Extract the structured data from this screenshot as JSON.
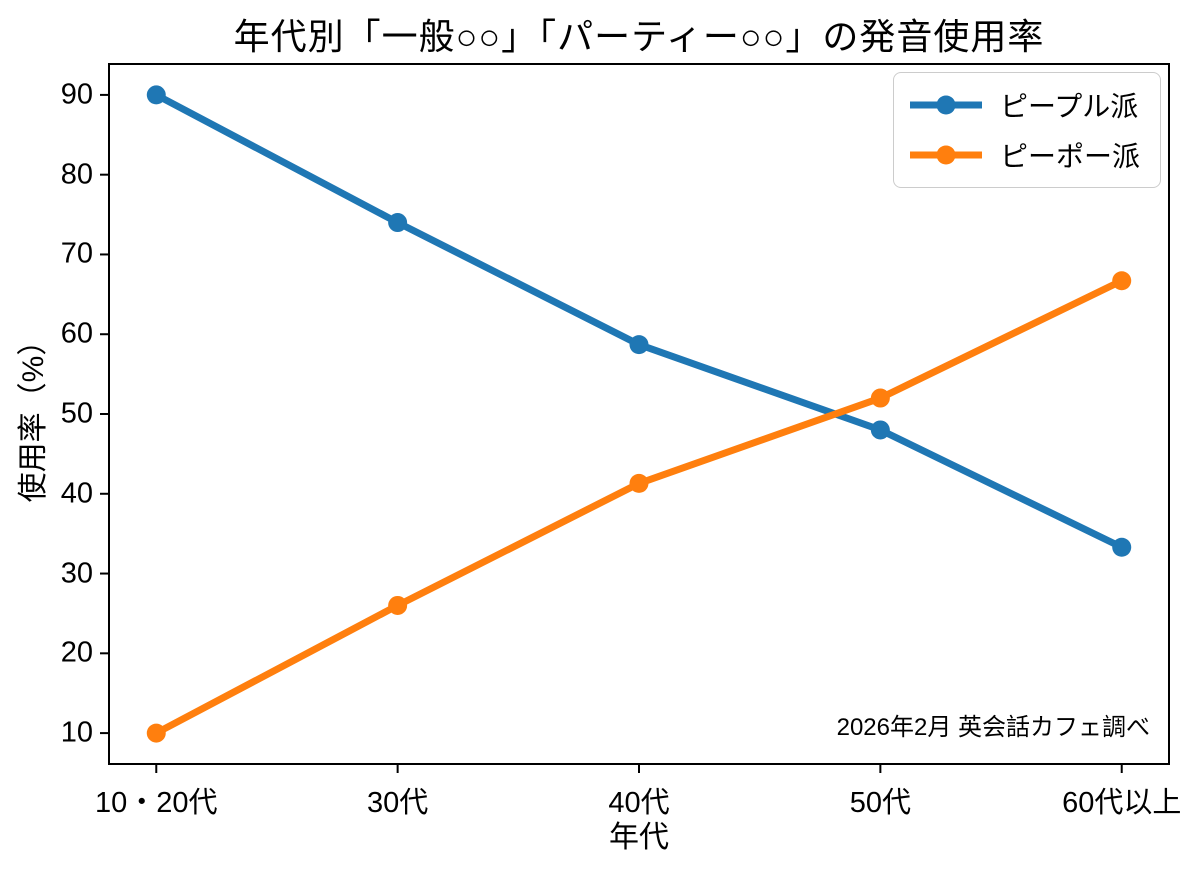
{
  "chart_data": {
    "type": "line",
    "title": "年代別「一般○○」「パーティー○○」の発音使用率",
    "xlabel": "年代",
    "ylabel": "使用率（%）",
    "categories": [
      "10・20代",
      "30代",
      "40代",
      "50代",
      "60代以上"
    ],
    "series": [
      {
        "name": "ピープル派",
        "color": "#1f77b4",
        "values": [
          90,
          74,
          58.7,
          48,
          33.3
        ]
      },
      {
        "name": "ピーポー派",
        "color": "#ff7f0e",
        "values": [
          10,
          26,
          41.3,
          52,
          66.7
        ]
      }
    ],
    "yticks": [
      10,
      20,
      30,
      40,
      50,
      60,
      70,
      80,
      90
    ],
    "ylim": [
      6,
      94
    ],
    "xlim": [
      -0.2,
      4.2
    ],
    "grid": false,
    "legend_position": "upper right",
    "annotation": "2026年2月 英会話カフェ調べ",
    "axis_color": "#000000",
    "background_color": "#ffffff"
  }
}
